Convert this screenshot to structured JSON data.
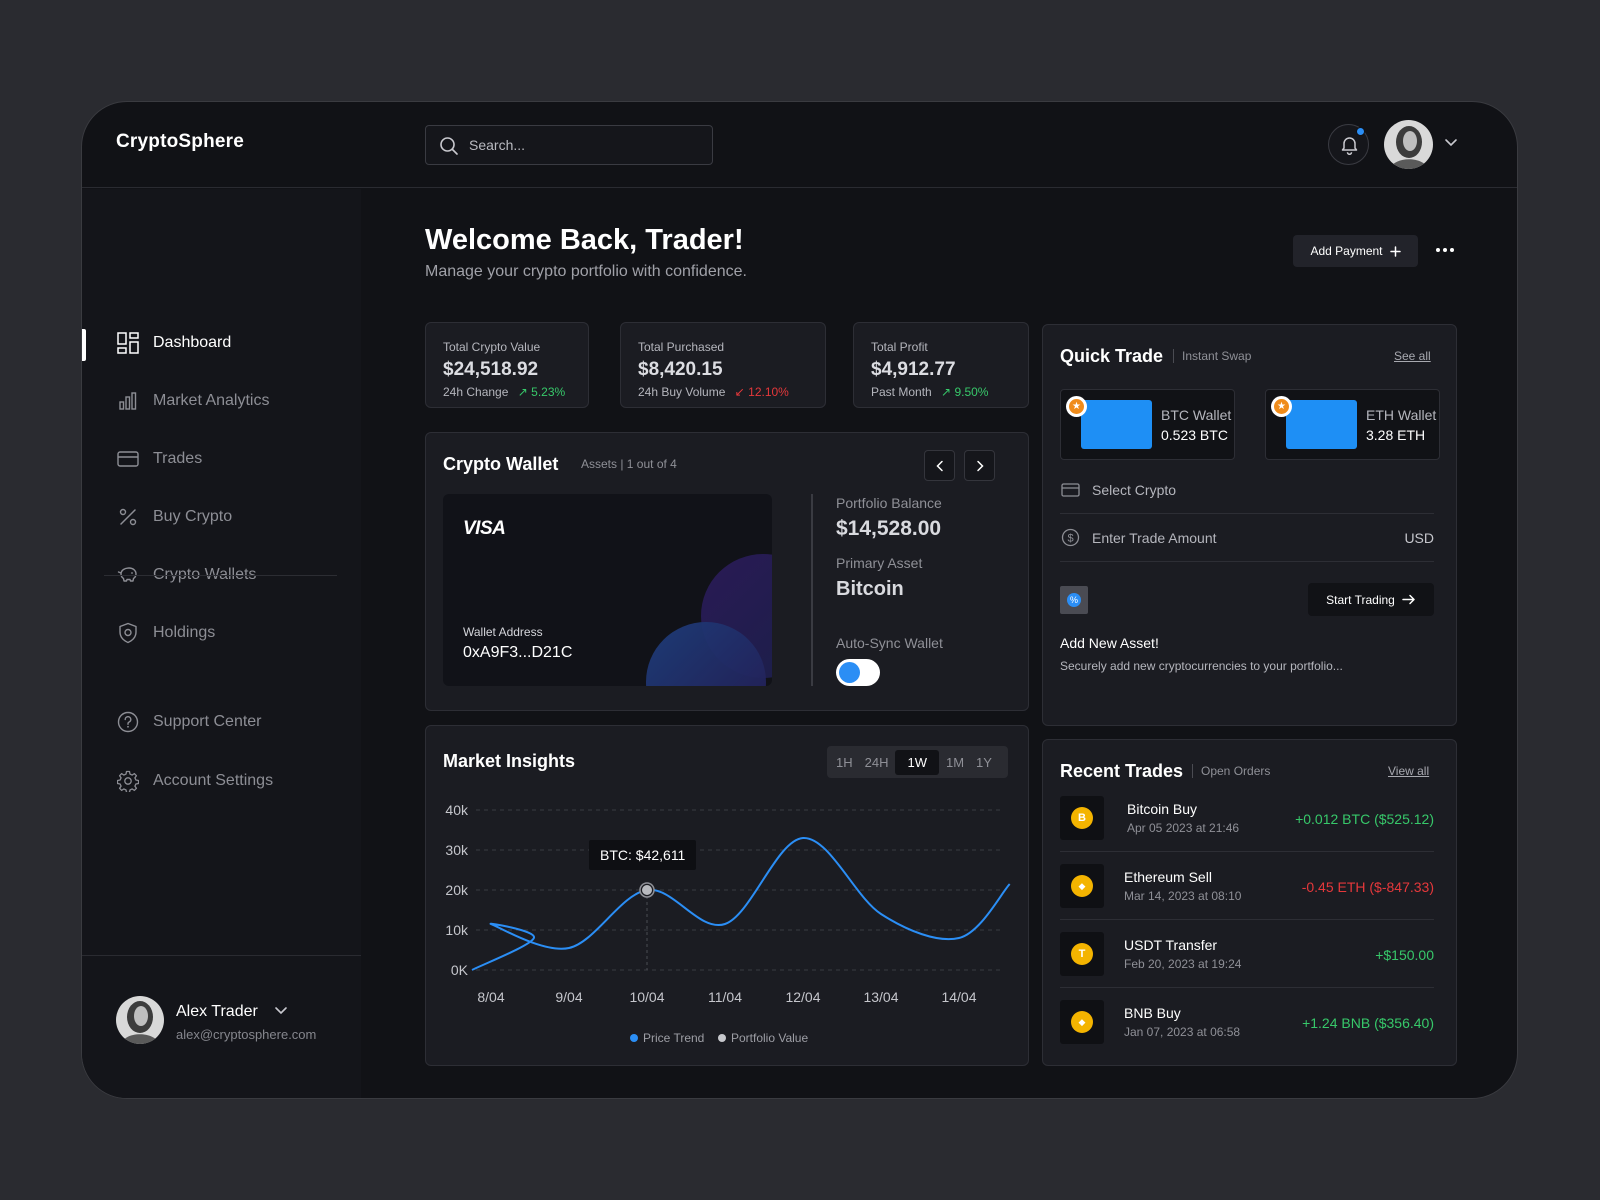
{
  "app": {
    "name": "CryptoSphere"
  },
  "search": {
    "placeholder": "Search..."
  },
  "sidebar": {
    "items": [
      {
        "label": "Dashboard"
      },
      {
        "label": "Market Analytics"
      },
      {
        "label": "Trades"
      },
      {
        "label": "Buy Crypto"
      },
      {
        "label": "Crypto Wallets"
      },
      {
        "label": "Holdings"
      }
    ],
    "secondary": [
      {
        "label": "Support Center"
      },
      {
        "label": "Account Settings"
      }
    ],
    "user": {
      "name": "Alex Trader",
      "email": "alex@cryptosphere.com"
    }
  },
  "header": {
    "title": "Welcome Back, Trader!",
    "subtitle": "Manage your crypto portfolio with confidence.",
    "add_payment": "Add Payment"
  },
  "stats": [
    {
      "title": "Total Crypto Value",
      "value": "$24,518.92",
      "sub": "24h Change",
      "change": "5.23%",
      "trend": "up"
    },
    {
      "title": "Total Purchased",
      "value": "$8,420.15",
      "sub": "24h Buy Volume",
      "change": "12.10%",
      "trend": "down"
    },
    {
      "title": "Total Profit",
      "value": "$4,912.77",
      "sub": "Past Month",
      "change": "9.50%",
      "trend": "up"
    }
  ],
  "wallet": {
    "title": "Crypto Wallet",
    "assets_label": "Assets | 1 out of 4",
    "card_brand": "VISA",
    "address_label": "Wallet Address",
    "address": "0xA9F3...D21C",
    "balance_label": "Portfolio Balance",
    "balance": "$14,528.00",
    "primary_label": "Primary Asset",
    "primary": "Bitcoin",
    "autosync_label": "Auto-Sync Wallet",
    "autosync_on": true
  },
  "market": {
    "title": "Market Insights",
    "ranges": [
      "1H",
      "24H",
      "1W",
      "1M",
      "1Y"
    ],
    "selected_range": "1W",
    "tooltip": "BTC: $42,611",
    "legend": [
      {
        "name": "Price Trend",
        "color": "#2b8ef5"
      },
      {
        "name": "Portfolio Value",
        "color": "#c7c8cd"
      }
    ]
  },
  "chart_data": {
    "type": "line",
    "x": [
      "8/04",
      "9/04",
      "10/04",
      "11/04",
      "12/04",
      "13/04",
      "14/04"
    ],
    "series": [
      {
        "name": "Price Trend",
        "points": [
          [
            "7/04",
            0
          ],
          [
            "8/04",
            8000
          ],
          [
            "8/04",
            11500
          ],
          [
            "9/04",
            5500
          ],
          [
            "10/04",
            20000
          ],
          [
            "11/04",
            11500
          ],
          [
            "12/04",
            33000
          ],
          [
            "13/04",
            14000
          ],
          [
            "14/04",
            8000
          ],
          [
            "15/04",
            21500
          ]
        ]
      }
    ],
    "highlight": {
      "x": "10/04",
      "y": 20000
    },
    "yticks": [
      "0K",
      "10k",
      "20k",
      "30k",
      "40k"
    ],
    "ylim": [
      0,
      40000
    ],
    "grid": true,
    "legend_position": "bottom"
  },
  "quick_trade": {
    "title": "Quick Trade",
    "subtitle": "Instant Swap",
    "see_all": "See all",
    "wallets": [
      {
        "name": "BTC Wallet",
        "amount": "0.523 BTC"
      },
      {
        "name": "ETH Wallet",
        "amount": "3.28 ETH"
      }
    ],
    "select_placeholder": "Select Crypto",
    "amount_placeholder": "Enter Trade Amount",
    "currency": "USD",
    "start_trading": "Start Trading",
    "add_asset_title": "Add New Asset!",
    "add_asset_desc": "Securely add new cryptocurrencies to your portfolio..."
  },
  "recent_trades": {
    "title": "Recent Trades",
    "subtitle": "Open Orders",
    "view_all": "View all",
    "items": [
      {
        "name": "Bitcoin Buy",
        "date": "Apr 05 2023 at 21:46",
        "amount": "+0.012 BTC ($525.12)",
        "trend": "up",
        "coin": "B",
        "icon": "bitcoin-icon"
      },
      {
        "name": "Ethereum Sell",
        "date": "Mar 14, 2023 at 08:10",
        "amount": "-0.45 ETH ($-847.33)",
        "trend": "down",
        "coin": "◆",
        "icon": "ethereum-icon"
      },
      {
        "name": "USDT Transfer",
        "date": "Feb 20, 2023 at 19:24",
        "amount": "+$150.00",
        "trend": "up",
        "coin": "T",
        "icon": "usdt-icon"
      },
      {
        "name": "BNB Buy",
        "date": "Jan 07, 2023 at 06:58",
        "amount": "+1.24 BNB ($356.40)",
        "trend": "up",
        "coin": "◆",
        "icon": "bnb-icon"
      }
    ]
  }
}
